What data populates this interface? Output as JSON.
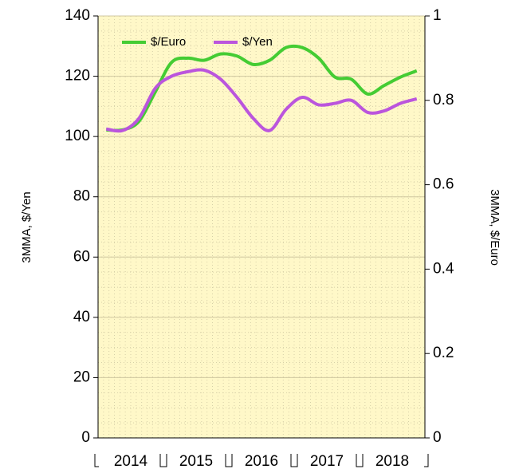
{
  "chart_data": {
    "type": "line",
    "categories": [
      "2014",
      null,
      null,
      null,
      "2015",
      null,
      null,
      null,
      "2016",
      null,
      null,
      null,
      "2017",
      null,
      null,
      null,
      "2018",
      null,
      null,
      null
    ],
    "series": [
      {
        "name": "$/Euro",
        "color": "#44cc33",
        "axis": "y2",
        "values": [
          0.73,
          0.73,
          0.75,
          0.82,
          0.89,
          0.9,
          0.895,
          0.91,
          0.905,
          0.885,
          0.895,
          0.925,
          0.925,
          0.9,
          0.855,
          0.85,
          0.815,
          0.835,
          0.855,
          0.87
        ]
      },
      {
        "name": "$/Yen",
        "color": "#bb55dd",
        "values": [
          102.5,
          102,
          106,
          116,
          120,
          121.5,
          122,
          119,
          113,
          106,
          102,
          109,
          113,
          110.5,
          111,
          112,
          108,
          108.5,
          111,
          112.5
        ]
      }
    ],
    "ylabel": "3MMA, $/Yen",
    "y2label": "3MMA, $/Euro",
    "ylim": [
      0,
      140
    ],
    "yticks": [
      0,
      20,
      40,
      60,
      80,
      100,
      120,
      140
    ],
    "y2lim": [
      0,
      1
    ],
    "y2ticks": [
      0,
      0.2,
      0.4,
      0.6,
      0.8,
      1
    ],
    "grid": true,
    "legend": "top-left"
  }
}
